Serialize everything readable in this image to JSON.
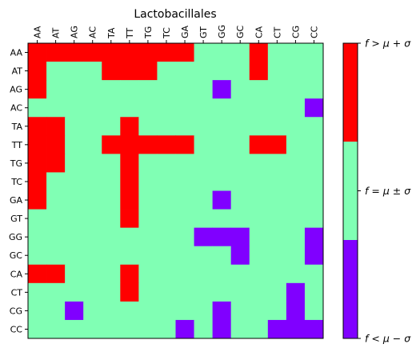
{
  "chart_data": {
    "type": "heatmap",
    "title": "Lactobacillales",
    "x_labels": [
      "AA",
      "AT",
      "AG",
      "AC",
      "TA",
      "TT",
      "TG",
      "TC",
      "GA",
      "GT",
      "GG",
      "GC",
      "CA",
      "CT",
      "CG",
      "CC"
    ],
    "y_labels": [
      "AA",
      "AT",
      "AG",
      "AC",
      "TA",
      "TT",
      "TG",
      "TC",
      "GA",
      "GT",
      "GG",
      "GC",
      "CA",
      "CT",
      "CG",
      "CC"
    ],
    "legend": {
      "high": "f > μ + σ",
      "mid": "f = μ ± σ",
      "low": "f < μ − σ"
    },
    "colors": {
      "high": "#ff0000",
      "mid": "#80ffb4",
      "low": "#8000ff"
    },
    "values": [
      [
        1,
        1,
        1,
        1,
        1,
        1,
        1,
        1,
        1,
        0,
        0,
        0,
        1,
        0,
        0,
        0
      ],
      [
        1,
        0,
        0,
        0,
        1,
        1,
        1,
        0,
        0,
        0,
        0,
        0,
        1,
        0,
        0,
        0
      ],
      [
        1,
        0,
        0,
        0,
        0,
        0,
        0,
        0,
        0,
        0,
        -1,
        0,
        0,
        0,
        0,
        0
      ],
      [
        0,
        0,
        0,
        0,
        0,
        0,
        0,
        0,
        0,
        0,
        0,
        0,
        0,
        0,
        0,
        -1
      ],
      [
        1,
        1,
        0,
        0,
        0,
        1,
        0,
        0,
        0,
        0,
        0,
        0,
        0,
        0,
        0,
        0
      ],
      [
        1,
        1,
        0,
        0,
        1,
        1,
        1,
        1,
        1,
        0,
        0,
        0,
        1,
        1,
        0,
        0
      ],
      [
        1,
        1,
        0,
        0,
        0,
        1,
        0,
        0,
        0,
        0,
        0,
        0,
        0,
        0,
        0,
        0
      ],
      [
        1,
        0,
        0,
        0,
        0,
        1,
        0,
        0,
        0,
        0,
        0,
        0,
        0,
        0,
        0,
        0
      ],
      [
        1,
        0,
        0,
        0,
        0,
        1,
        0,
        0,
        0,
        0,
        -1,
        0,
        0,
        0,
        0,
        0
      ],
      [
        0,
        0,
        0,
        0,
        0,
        1,
        0,
        0,
        0,
        0,
        0,
        0,
        0,
        0,
        0,
        0
      ],
      [
        0,
        0,
        0,
        0,
        0,
        0,
        0,
        0,
        0,
        -1,
        -1,
        -1,
        0,
        0,
        0,
        -1
      ],
      [
        0,
        0,
        0,
        0,
        0,
        0,
        0,
        0,
        0,
        0,
        0,
        -1,
        0,
        0,
        0,
        -1
      ],
      [
        1,
        1,
        0,
        0,
        0,
        1,
        0,
        0,
        0,
        0,
        0,
        0,
        0,
        0,
        0,
        0
      ],
      [
        0,
        0,
        0,
        0,
        0,
        1,
        0,
        0,
        0,
        0,
        0,
        0,
        0,
        0,
        -1,
        0
      ],
      [
        0,
        0,
        -1,
        0,
        0,
        0,
        0,
        0,
        0,
        0,
        -1,
        0,
        0,
        0,
        -1,
        0
      ],
      [
        0,
        0,
        0,
        0,
        0,
        0,
        0,
        0,
        -1,
        0,
        -1,
        0,
        0,
        -1,
        -1,
        -1
      ]
    ]
  }
}
